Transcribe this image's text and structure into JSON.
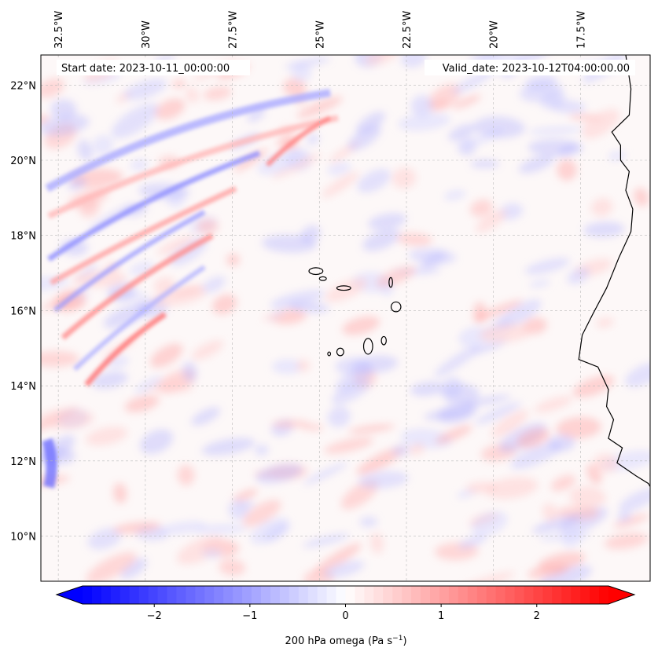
{
  "map": {
    "projection": "PlateCarree",
    "extent": {
      "lon_min": -33.0,
      "lon_max": -15.5,
      "lat_min": 8.8,
      "lat_max": 22.8
    },
    "start_label": "Start date: 2023-10-11_00:00:00",
    "valid_label": "Valid_date: 2023-10-12T04:00:00.00",
    "lon_ticks": [
      {
        "value": -32.5,
        "label": "32.5°W"
      },
      {
        "value": -30.0,
        "label": "30°W"
      },
      {
        "value": -27.5,
        "label": "27.5°W"
      },
      {
        "value": -25.0,
        "label": "25°W"
      },
      {
        "value": -22.5,
        "label": "22.5°W"
      },
      {
        "value": -20.0,
        "label": "20°W"
      },
      {
        "value": -17.5,
        "label": "17.5°W"
      }
    ],
    "lat_ticks": [
      {
        "value": 22,
        "label": "22°N"
      },
      {
        "value": 20,
        "label": "20°N"
      },
      {
        "value": 18,
        "label": "18°N"
      },
      {
        "value": 16,
        "label": "16°N"
      },
      {
        "value": 14,
        "label": "14°N"
      },
      {
        "value": 12,
        "label": "12°N"
      },
      {
        "value": 10,
        "label": "10°N"
      }
    ],
    "gridlines": true,
    "field": "200 hPa omega",
    "features": [
      {
        "name": "Santo Antao",
        "lat": 17.05,
        "lon": -25.1,
        "rx": 0.2,
        "ry": 0.09
      },
      {
        "name": "Sao Vicente",
        "lat": 16.85,
        "lon": -24.9,
        "rx": 0.1,
        "ry": 0.05
      },
      {
        "name": "Sao Nicolau",
        "lat": 16.6,
        "lon": -24.3,
        "rx": 0.2,
        "ry": 0.06
      },
      {
        "name": "Sal",
        "lat": 16.75,
        "lon": -22.95,
        "rx": 0.05,
        "ry": 0.13
      },
      {
        "name": "Boa Vista",
        "lat": 16.1,
        "lon": -22.8,
        "rx": 0.14,
        "ry": 0.13
      },
      {
        "name": "Santiago",
        "lat": 15.05,
        "lon": -23.6,
        "rx": 0.13,
        "ry": 0.21
      },
      {
        "name": "Maio",
        "lat": 15.2,
        "lon": -23.15,
        "rx": 0.07,
        "ry": 0.11
      },
      {
        "name": "Fogo",
        "lat": 14.9,
        "lon": -24.4,
        "rx": 0.1,
        "ry": 0.1
      },
      {
        "name": "Brava",
        "lat": 14.85,
        "lon": -24.72,
        "rx": 0.04,
        "ry": 0.05
      }
    ]
  },
  "colorbar": {
    "colormap": "bwr",
    "vmin": -2.75,
    "vmax": 2.75,
    "levels": 56,
    "extend": "both",
    "ticks": [
      {
        "value": -2,
        "label": "−2"
      },
      {
        "value": -1,
        "label": "−1"
      },
      {
        "value": 0,
        "label": "0"
      },
      {
        "value": 1,
        "label": "1"
      },
      {
        "value": 2,
        "label": "2"
      }
    ],
    "label": "200 hPa omega (Pa s",
    "label_exp": "−1",
    "label_end": ")"
  },
  "colors": {
    "negative": "#0000ff",
    "zero": "#ffffff",
    "positive": "#ff0000",
    "coastline": "#000000",
    "grid": "#bbbbbb"
  }
}
